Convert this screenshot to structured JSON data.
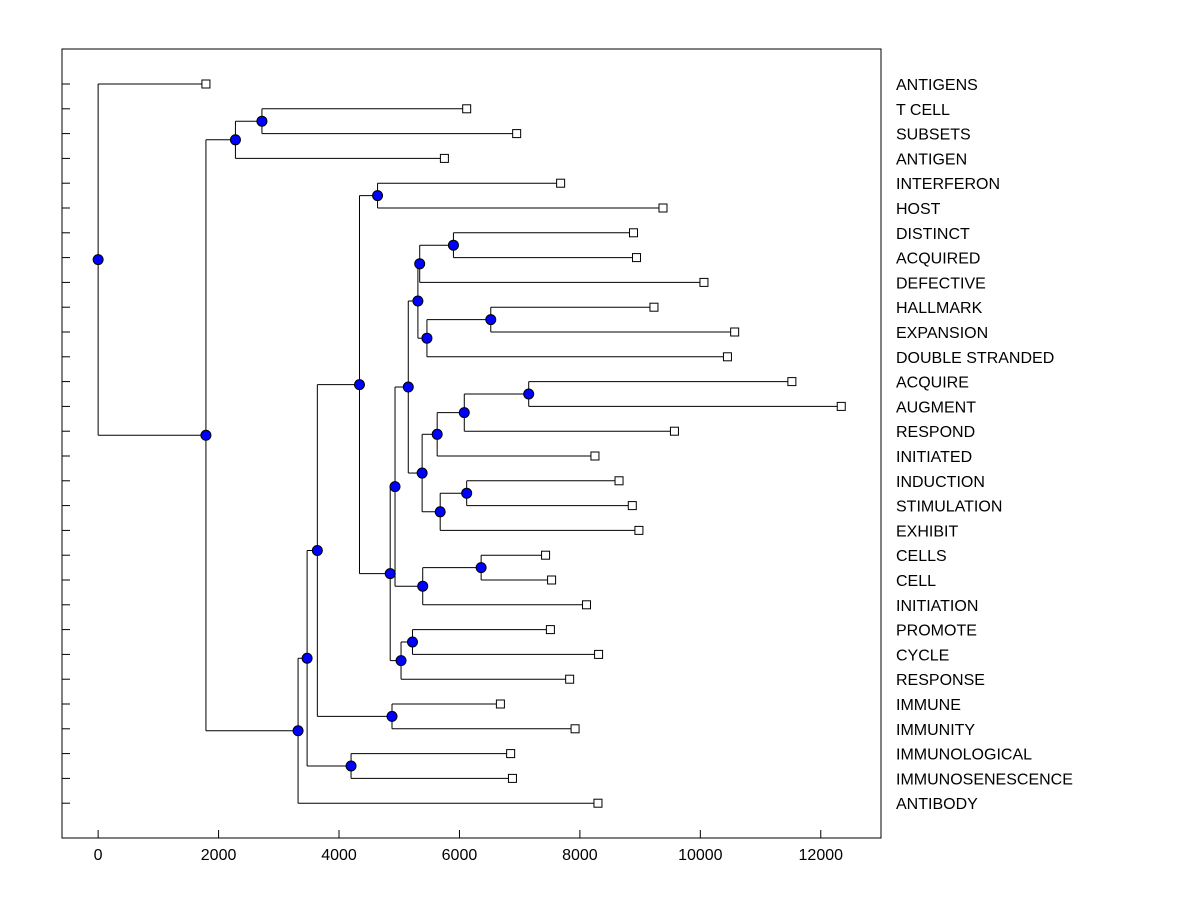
{
  "colors": {
    "node": "#0000ff",
    "line": "#000000",
    "background": "#ffffff"
  },
  "chart_data": {
    "type": "dendrogram",
    "title": "",
    "xlabel": "",
    "ylabel": "",
    "xlim": [
      -600,
      13000
    ],
    "xticks": [
      0,
      2000,
      4000,
      6000,
      8000,
      10000,
      12000
    ],
    "xtick_labels": [
      "0",
      "2000",
      "4000",
      "6000",
      "8000",
      "10000",
      "12000"
    ],
    "grid": false,
    "leaves": [
      {
        "label": "ANTIGENS",
        "value": 1790
      },
      {
        "label": "T CELL",
        "value": 6120
      },
      {
        "label": "SUBSETS",
        "value": 6950
      },
      {
        "label": "ANTIGEN",
        "value": 5750
      },
      {
        "label": "INTERFERON",
        "value": 7680
      },
      {
        "label": "HOST",
        "value": 9380
      },
      {
        "label": "DISTINCT",
        "value": 8890
      },
      {
        "label": "ACQUIRED",
        "value": 8940
      },
      {
        "label": "DEFECTIVE",
        "value": 10060
      },
      {
        "label": "HALLMARK",
        "value": 9230
      },
      {
        "label": "EXPANSION",
        "value": 10570
      },
      {
        "label": "DOUBLE STRANDED",
        "value": 10450
      },
      {
        "label": "ACQUIRE",
        "value": 11520
      },
      {
        "label": "AUGMENT",
        "value": 12340
      },
      {
        "label": "RESPOND",
        "value": 9570
      },
      {
        "label": "INITIATED",
        "value": 8250
      },
      {
        "label": "INDUCTION",
        "value": 8650
      },
      {
        "label": "STIMULATION",
        "value": 8870
      },
      {
        "label": "EXHIBIT",
        "value": 8980
      },
      {
        "label": "CELLS",
        "value": 7430
      },
      {
        "label": "CELL",
        "value": 7530
      },
      {
        "label": "INITIATION",
        "value": 8110
      },
      {
        "label": "PROMOTE",
        "value": 7510
      },
      {
        "label": "CYCLE",
        "value": 8310
      },
      {
        "label": "RESPONSE",
        "value": 7830
      },
      {
        "label": "IMMUNE",
        "value": 6680
      },
      {
        "label": "IMMUNITY",
        "value": 7920
      },
      {
        "label": "IMMUNOLOGICAL",
        "value": 6850
      },
      {
        "label": "IMMUNOSENESCENCE",
        "value": 6880
      },
      {
        "label": "ANTIBODY",
        "value": 8300
      }
    ],
    "merges": [
      {
        "id": "n1",
        "value": 2720,
        "children": [
          "T CELL",
          "SUBSETS"
        ]
      },
      {
        "id": "n2",
        "value": 2280,
        "children": [
          "n1",
          "ANTIGEN"
        ]
      },
      {
        "id": "n3",
        "value": 4640,
        "children": [
          "INTERFERON",
          "HOST"
        ]
      },
      {
        "id": "n4",
        "value": 5900,
        "children": [
          "DISTINCT",
          "ACQUIRED"
        ]
      },
      {
        "id": "n5",
        "value": 5340,
        "children": [
          "n4",
          "DEFECTIVE"
        ]
      },
      {
        "id": "n6",
        "value": 6520,
        "children": [
          "HALLMARK",
          "EXPANSION"
        ]
      },
      {
        "id": "n7",
        "value": 5460,
        "children": [
          "n6",
          "DOUBLE STRANDED"
        ]
      },
      {
        "id": "n8",
        "value": 5310,
        "children": [
          "n5",
          "n7"
        ]
      },
      {
        "id": "n9",
        "value": 7150,
        "children": [
          "ACQUIRE",
          "AUGMENT"
        ]
      },
      {
        "id": "n10",
        "value": 6080,
        "children": [
          "n9",
          "RESPOND"
        ]
      },
      {
        "id": "n11",
        "value": 5630,
        "children": [
          "n10",
          "INITIATED"
        ]
      },
      {
        "id": "n12",
        "value": 6120,
        "children": [
          "INDUCTION",
          "STIMULATION"
        ]
      },
      {
        "id": "n13",
        "value": 5680,
        "children": [
          "n12",
          "EXHIBIT"
        ]
      },
      {
        "id": "n14",
        "value": 5380,
        "children": [
          "n11",
          "n13"
        ]
      },
      {
        "id": "n15",
        "value": 5150,
        "children": [
          "n8",
          "n14"
        ]
      },
      {
        "id": "n16",
        "value": 6360,
        "children": [
          "CELLS",
          "CELL"
        ]
      },
      {
        "id": "n17",
        "value": 5390,
        "children": [
          "n16",
          "INITIATION"
        ]
      },
      {
        "id": "n18",
        "value": 4930,
        "children": [
          "n15",
          "n17"
        ]
      },
      {
        "id": "n19",
        "value": 5220,
        "children": [
          "PROMOTE",
          "CYCLE"
        ]
      },
      {
        "id": "n20",
        "value": 5030,
        "children": [
          "n19",
          "RESPONSE"
        ]
      },
      {
        "id": "n21",
        "value": 4850,
        "children": [
          "n18",
          "n20"
        ]
      },
      {
        "id": "n22",
        "value": 4340,
        "children": [
          "n3",
          "n21"
        ]
      },
      {
        "id": "n23",
        "value": 4880,
        "children": [
          "IMMUNE",
          "IMMUNITY"
        ]
      },
      {
        "id": "n24",
        "value": 3640,
        "children": [
          "n22",
          "n23"
        ]
      },
      {
        "id": "n25",
        "value": 4200,
        "children": [
          "IMMUNOLOGICAL",
          "IMMUNOSENESCENCE"
        ]
      },
      {
        "id": "n26",
        "value": 3470,
        "children": [
          "n24",
          "n25"
        ]
      },
      {
        "id": "n27",
        "value": 3320,
        "children": [
          "n26",
          "ANTIBODY"
        ]
      },
      {
        "id": "n28",
        "value": 1790,
        "children": [
          "n2",
          "n27"
        ]
      },
      {
        "id": "n29",
        "value": 0,
        "children": [
          "ANTIGENS",
          "n28"
        ]
      }
    ]
  }
}
